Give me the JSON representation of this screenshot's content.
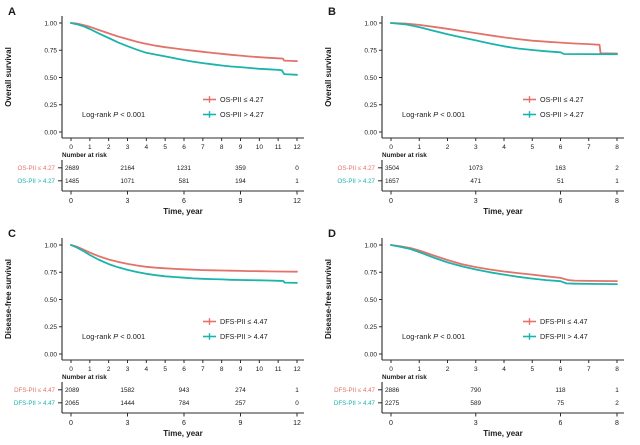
{
  "colors": {
    "low": "#e2736a",
    "high": "#1bb3ac",
    "axis": "#2b2b2b",
    "text": "#1a1a1a",
    "background": "#ffffff"
  },
  "chart_data": [
    {
      "type": "line",
      "panel_label": "A",
      "ylabel": "Overall survival",
      "xlabel": "Time, year",
      "xlim": [
        0,
        12
      ],
      "ylim": [
        0,
        1
      ],
      "xticks": [
        0,
        1,
        2,
        3,
        4,
        5,
        6,
        7,
        8,
        9,
        10,
        11,
        12
      ],
      "ytick_labels": [
        "1.00",
        "0.75",
        "0.50",
        "0.25",
        "0.00"
      ],
      "legend_position": "inside-right-lower",
      "annotation": {
        "prefix": "Log-rank ",
        "p": "P",
        "suffix": " < 0.001"
      },
      "legend": [
        "OS-PII ≤ 4.27",
        "OS-PII > 4.27"
      ],
      "series": [
        {
          "name": "OS-PII ≤ 4.27",
          "color_key": "low",
          "pts": [
            [
              0,
              1
            ],
            [
              0.3,
              0.995
            ],
            [
              0.7,
              0.98
            ],
            [
              1,
              0.965
            ],
            [
              1.5,
              0.935
            ],
            [
              2,
              0.905
            ],
            [
              2.5,
              0.876
            ],
            [
              3,
              0.852
            ],
            [
              3.5,
              0.828
            ],
            [
              4,
              0.808
            ],
            [
              4.5,
              0.792
            ],
            [
              5,
              0.778
            ],
            [
              5.5,
              0.767
            ],
            [
              6,
              0.756
            ],
            [
              6.5,
              0.746
            ],
            [
              7,
              0.736
            ],
            [
              7.5,
              0.726
            ],
            [
              8,
              0.717
            ],
            [
              8.5,
              0.708
            ],
            [
              9,
              0.701
            ],
            [
              9.5,
              0.693
            ],
            [
              10,
              0.686
            ],
            [
              10.5,
              0.681
            ],
            [
              11,
              0.676
            ],
            [
              11.25,
              0.673
            ],
            [
              11.32,
              0.655
            ],
            [
              12,
              0.65
            ]
          ]
        },
        {
          "name": "OS-PII > 4.27",
          "color_key": "high",
          "pts": [
            [
              0,
              1
            ],
            [
              0.3,
              0.989
            ],
            [
              0.7,
              0.968
            ],
            [
              1,
              0.945
            ],
            [
              1.5,
              0.902
            ],
            [
              2,
              0.862
            ],
            [
              2.5,
              0.822
            ],
            [
              3,
              0.787
            ],
            [
              3.5,
              0.755
            ],
            [
              4,
              0.727
            ],
            [
              4.5,
              0.71
            ],
            [
              5,
              0.694
            ],
            [
              5.5,
              0.676
            ],
            [
              6,
              0.66
            ],
            [
              6.5,
              0.645
            ],
            [
              7,
              0.632
            ],
            [
              7.5,
              0.621
            ],
            [
              8,
              0.61
            ],
            [
              8.5,
              0.601
            ],
            [
              9,
              0.595
            ],
            [
              9.5,
              0.587
            ],
            [
              10,
              0.58
            ],
            [
              10.5,
              0.575
            ],
            [
              11,
              0.57
            ],
            [
              11.2,
              0.566
            ],
            [
              11.32,
              0.531
            ],
            [
              12,
              0.525
            ]
          ]
        }
      ],
      "risk_table": {
        "title": "Number at risk",
        "times": [
          0,
          3,
          6,
          9,
          12
        ],
        "rows": [
          {
            "label": "OS-PII ≤ 4.27",
            "color_key": "low",
            "values": [
              "2689",
              "2164",
              "1231",
              "359",
              "0"
            ]
          },
          {
            "label": "OS-PII > 4.27",
            "color_key": "high",
            "values": [
              "1485",
              "1071",
              "581",
              "194",
              "1"
            ]
          }
        ]
      }
    },
    {
      "type": "line",
      "panel_label": "B",
      "ylabel": "Overall survival",
      "xlabel": "Time, year",
      "xlim": [
        0,
        8
      ],
      "ylim": [
        0,
        1
      ],
      "xticks": [
        0,
        1,
        2,
        3,
        4,
        5,
        6,
        7,
        8
      ],
      "ytick_labels": [
        "1.00",
        "0.75",
        "0.50",
        "0.25",
        "0.00"
      ],
      "legend_position": "inside-right-lower",
      "annotation": {
        "prefix": "Log-rank ",
        "p": "P",
        "suffix": " < 0.001"
      },
      "legend": [
        "OS-PII ≤ 4.27",
        "OS-PII > 4.27"
      ],
      "series": [
        {
          "name": "OS-PII ≤ 4.27",
          "color_key": "low",
          "pts": [
            [
              0,
              1
            ],
            [
              0.5,
              0.995
            ],
            [
              1,
              0.983
            ],
            [
              1.5,
              0.965
            ],
            [
              2,
              0.947
            ],
            [
              2.5,
              0.927
            ],
            [
              3,
              0.907
            ],
            [
              3.5,
              0.887
            ],
            [
              4,
              0.868
            ],
            [
              4.5,
              0.852
            ],
            [
              5,
              0.838
            ],
            [
              5.5,
              0.828
            ],
            [
              6,
              0.82
            ],
            [
              6.5,
              0.812
            ],
            [
              7,
              0.806
            ],
            [
              7.38,
              0.8
            ],
            [
              7.42,
              0.722
            ],
            [
              8,
              0.72
            ]
          ]
        },
        {
          "name": "OS-PII > 4.27",
          "color_key": "high",
          "pts": [
            [
              0,
              1
            ],
            [
              0.5,
              0.988
            ],
            [
              1,
              0.962
            ],
            [
              1.5,
              0.928
            ],
            [
              2,
              0.897
            ],
            [
              2.5,
              0.868
            ],
            [
              3,
              0.84
            ],
            [
              3.5,
              0.812
            ],
            [
              4,
              0.786
            ],
            [
              4.5,
              0.766
            ],
            [
              5,
              0.752
            ],
            [
              5.5,
              0.74
            ],
            [
              6,
              0.731
            ],
            [
              6.12,
              0.716
            ],
            [
              7,
              0.715
            ],
            [
              8,
              0.714
            ]
          ]
        }
      ],
      "risk_table": {
        "title": "Number at risk",
        "times": [
          0,
          3,
          6,
          8
        ],
        "rows": [
          {
            "label": "OS-PII ≤ 4.27",
            "color_key": "low",
            "values": [
              "3504",
              "1073",
              "163",
              "2"
            ]
          },
          {
            "label": "OS-PII > 4.27",
            "color_key": "high",
            "values": [
              "1657",
              "471",
              "51",
              "1"
            ]
          }
        ]
      }
    },
    {
      "type": "line",
      "panel_label": "C",
      "ylabel": "Disease-free survival",
      "xlabel": "Time, year",
      "xlim": [
        0,
        12
      ],
      "ylim": [
        0,
        1
      ],
      "xticks": [
        0,
        1,
        2,
        3,
        4,
        5,
        6,
        7,
        8,
        9,
        10,
        11,
        12
      ],
      "ytick_labels": [
        "1.00",
        "0.75",
        "0.50",
        "0.25",
        "0.00"
      ],
      "legend_position": "inside-right-lower",
      "annotation": {
        "prefix": "Log-rank ",
        "p": "P",
        "suffix": " < 0.001"
      },
      "legend": [
        "DFS-PII ≤ 4.47",
        "DFS-PII > 4.47"
      ],
      "series": [
        {
          "name": "DFS-PII ≤ 4.47",
          "color_key": "low",
          "pts": [
            [
              0,
              1
            ],
            [
              0.3,
              0.985
            ],
            [
              0.7,
              0.955
            ],
            [
              1,
              0.93
            ],
            [
              1.5,
              0.895
            ],
            [
              2,
              0.867
            ],
            [
              2.5,
              0.845
            ],
            [
              3,
              0.827
            ],
            [
              3.5,
              0.812
            ],
            [
              4,
              0.8
            ],
            [
              4.5,
              0.792
            ],
            [
              5,
              0.786
            ],
            [
              5.5,
              0.781
            ],
            [
              6,
              0.777
            ],
            [
              6.5,
              0.773
            ],
            [
              7,
              0.77
            ],
            [
              7.5,
              0.768
            ],
            [
              8,
              0.766
            ],
            [
              8.5,
              0.764
            ],
            [
              9,
              0.762
            ],
            [
              9.5,
              0.761
            ],
            [
              10,
              0.76
            ],
            [
              10.5,
              0.758
            ],
            [
              11,
              0.757
            ],
            [
              11.5,
              0.756
            ],
            [
              12,
              0.755
            ]
          ]
        },
        {
          "name": "DFS-PII > 4.47",
          "color_key": "high",
          "pts": [
            [
              0,
              1
            ],
            [
              0.3,
              0.978
            ],
            [
              0.7,
              0.94
            ],
            [
              1,
              0.908
            ],
            [
              1.5,
              0.862
            ],
            [
              2,
              0.825
            ],
            [
              2.5,
              0.795
            ],
            [
              3,
              0.772
            ],
            [
              3.5,
              0.752
            ],
            [
              4,
              0.736
            ],
            [
              4.5,
              0.723
            ],
            [
              5,
              0.713
            ],
            [
              5.5,
              0.706
            ],
            [
              6,
              0.7
            ],
            [
              6.5,
              0.694
            ],
            [
              7,
              0.69
            ],
            [
              7.5,
              0.687
            ],
            [
              8,
              0.684
            ],
            [
              8.5,
              0.681
            ],
            [
              9,
              0.679
            ],
            [
              9.5,
              0.677
            ],
            [
              10,
              0.676
            ],
            [
              10.5,
              0.674
            ],
            [
              11,
              0.672
            ],
            [
              11.28,
              0.67
            ],
            [
              11.34,
              0.655
            ],
            [
              12,
              0.652
            ]
          ]
        }
      ],
      "risk_table": {
        "title": "Number at risk",
        "times": [
          0,
          3,
          6,
          9,
          12
        ],
        "rows": [
          {
            "label": "DFS-PII ≤ 4.47",
            "color_key": "low",
            "values": [
              "2089",
              "1582",
              "943",
              "274",
              "1"
            ]
          },
          {
            "label": "DFS-PII > 4.47",
            "color_key": "high",
            "values": [
              "2065",
              "1444",
              "784",
              "257",
              "0"
            ]
          }
        ]
      }
    },
    {
      "type": "line",
      "panel_label": "D",
      "ylabel": "Disease-free survival",
      "xlabel": "Time, year",
      "xlim": [
        0,
        8
      ],
      "ylim": [
        0,
        1
      ],
      "xticks": [
        0,
        1,
        2,
        3,
        4,
        5,
        6,
        7,
        8
      ],
      "ytick_labels": [
        "1.00",
        "0.75",
        "0.50",
        "0.25",
        "0.00"
      ],
      "legend_position": "inside-right-lower",
      "annotation": {
        "prefix": "Log-rank ",
        "p": "P",
        "suffix": " < 0.001"
      },
      "legend": [
        "DFS-PII ≤ 4.47",
        "DFS-PII > 4.47"
      ],
      "series": [
        {
          "name": "DFS-PII ≤ 4.47",
          "color_key": "low",
          "pts": [
            [
              0,
              1
            ],
            [
              0.3,
              0.99
            ],
            [
              0.7,
              0.972
            ],
            [
              1,
              0.95
            ],
            [
              1.5,
              0.905
            ],
            [
              2,
              0.862
            ],
            [
              2.5,
              0.825
            ],
            [
              3,
              0.797
            ],
            [
              3.5,
              0.775
            ],
            [
              4,
              0.757
            ],
            [
              4.5,
              0.742
            ],
            [
              5,
              0.728
            ],
            [
              5.5,
              0.713
            ],
            [
              6,
              0.698
            ],
            [
              6.3,
              0.677
            ],
            [
              6.5,
              0.673
            ],
            [
              7,
              0.671
            ],
            [
              7.5,
              0.67
            ],
            [
              8,
              0.669
            ]
          ]
        },
        {
          "name": "DFS-PII > 4.47",
          "color_key": "high",
          "pts": [
            [
              0,
              1
            ],
            [
              0.3,
              0.985
            ],
            [
              0.7,
              0.962
            ],
            [
              1,
              0.935
            ],
            [
              1.5,
              0.885
            ],
            [
              2,
              0.84
            ],
            [
              2.5,
              0.805
            ],
            [
              3,
              0.775
            ],
            [
              3.5,
              0.75
            ],
            [
              4,
              0.728
            ],
            [
              4.5,
              0.708
            ],
            [
              5,
              0.692
            ],
            [
              5.5,
              0.678
            ],
            [
              6,
              0.668
            ],
            [
              6.2,
              0.648
            ],
            [
              6.5,
              0.645
            ],
            [
              7,
              0.643
            ],
            [
              7.5,
              0.642
            ],
            [
              8,
              0.641
            ]
          ]
        }
      ],
      "risk_table": {
        "title": "Number at risk",
        "times": [
          0,
          3,
          6,
          8
        ],
        "rows": [
          {
            "label": "DFS-PII ≤ 4.47",
            "color_key": "low",
            "values": [
              "2886",
              "790",
              "118",
              "1"
            ]
          },
          {
            "label": "DFS-PII > 4.47",
            "color_key": "high",
            "values": [
              "2275",
              "589",
              "75",
              "2"
            ]
          }
        ]
      }
    }
  ]
}
